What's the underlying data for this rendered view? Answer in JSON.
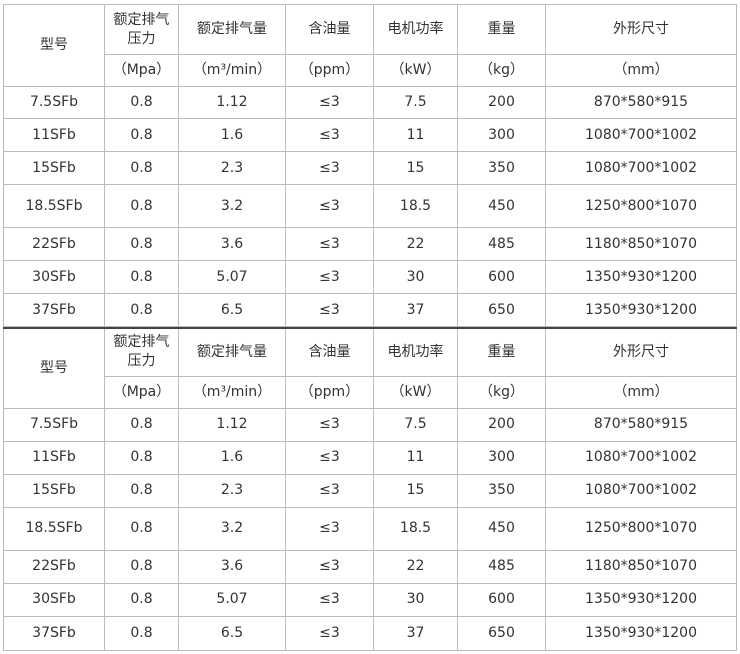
{
  "tables": [
    {
      "header": [
        "型号",
        "额定排气压力",
        "额定排气量",
        "含油量",
        "电机功率",
        "重量",
        "外形尺寸"
      ],
      "units": [
        "（Mpa）",
        "（m³/min）",
        "（ppm）",
        "（kW）",
        "（kg）",
        "（mm）"
      ],
      "rows": [
        [
          "7.5SFb",
          "0.8",
          "1.12",
          "≤3",
          "7.5",
          "200",
          "870*580*915"
        ],
        [
          "11SFb",
          "0.8",
          "1.6",
          "≤3",
          "11",
          "300",
          "1080*700*1002"
        ],
        [
          "15SFb",
          "0.8",
          "2.3",
          "≤3",
          "15",
          "350",
          "1080*700*1002"
        ],
        [
          "18.5SFb",
          "0.8",
          "3.2",
          "≤3",
          "18.5",
          "450",
          "1250*800*1070"
        ],
        [
          "22SFb",
          "0.8",
          "3.6",
          "≤3",
          "22",
          "485",
          "1180*850*1070"
        ],
        [
          "30SFb",
          "0.8",
          "5.07",
          "≤3",
          "30",
          "600",
          "1350*930*1200"
        ],
        [
          "37SFb",
          "0.8",
          "6.5",
          "≤3",
          "37",
          "650",
          "1350*930*1200"
        ]
      ]
    },
    {
      "header": [
        "型号",
        "额定排气压力",
        "额定排气量",
        "含油量",
        "电机功率",
        "重量",
        "外形尺寸"
      ],
      "units": [
        "（Mpa）",
        "（m³/min）",
        "（ppm）",
        "（kW）",
        "（kg）",
        "（mm）"
      ],
      "rows": [
        [
          "7.5SFb",
          "0.8",
          "1.12",
          "≤3",
          "7.5",
          "200",
          "870*580*915"
        ],
        [
          "11SFb",
          "0.8",
          "1.6",
          "≤3",
          "11",
          "300",
          "1080*700*1002"
        ],
        [
          "15SFb",
          "0.8",
          "2.3",
          "≤3",
          "15",
          "350",
          "1080*700*1002"
        ],
        [
          "18.5SFb",
          "0.8",
          "3.2",
          "≤3",
          "18.5",
          "450",
          "1250*800*1070"
        ],
        [
          "22SFb",
          "0.8",
          "3.6",
          "≤3",
          "22",
          "485",
          "1180*850*1070"
        ],
        [
          "30SFb",
          "0.8",
          "5.07",
          "≤3",
          "30",
          "600",
          "1350*930*1200"
        ],
        [
          "37SFb",
          "0.8",
          "6.5",
          "≤3",
          "37",
          "650",
          "1350*930*1200"
        ]
      ]
    }
  ]
}
